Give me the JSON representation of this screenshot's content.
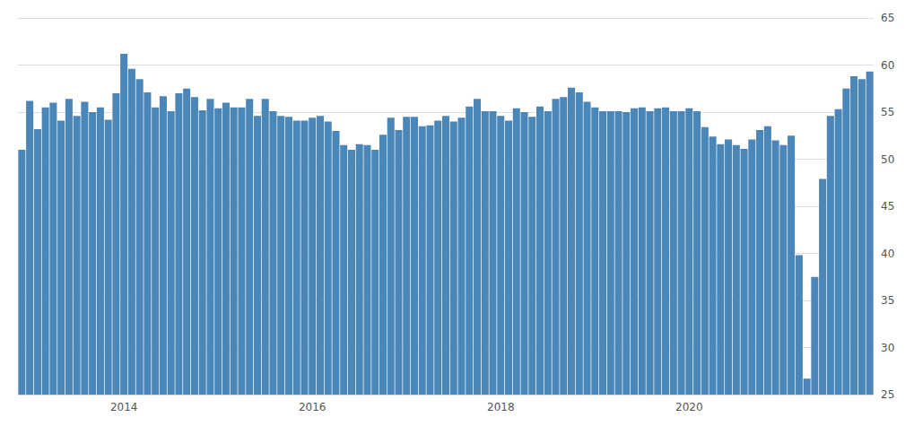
{
  "chart_data": {
    "type": "bar",
    "categories": [
      null,
      null,
      null,
      null,
      null,
      null,
      null,
      null,
      null,
      null,
      null,
      null,
      null,
      "2014",
      null,
      null,
      null,
      null,
      null,
      null,
      null,
      null,
      null,
      null,
      null,
      null,
      null,
      null,
      null,
      null,
      null,
      null,
      null,
      null,
      null,
      null,
      null,
      "2016",
      null,
      null,
      null,
      null,
      null,
      null,
      null,
      null,
      null,
      null,
      null,
      null,
      null,
      null,
      null,
      null,
      null,
      null,
      null,
      null,
      null,
      null,
      null,
      "2018",
      null,
      null,
      null,
      null,
      null,
      null,
      null,
      null,
      null,
      null,
      null,
      null,
      null,
      null,
      null,
      null,
      null,
      null,
      null,
      null,
      null,
      null,
      null,
      "2020",
      null,
      null,
      null,
      null,
      null,
      null,
      null,
      null,
      null,
      null,
      null,
      null,
      null,
      null,
      null,
      null,
      null,
      null,
      null,
      null,
      null,
      null,
      null
    ],
    "values": [
      51.0,
      56.2,
      53.2,
      55.5,
      56.0,
      54.1,
      56.4,
      54.6,
      56.1,
      55.0,
      55.5,
      54.2,
      57.0,
      61.2,
      59.6,
      58.5,
      57.1,
      55.5,
      56.7,
      55.1,
      57.0,
      57.5,
      56.6,
      55.2,
      56.4,
      55.4,
      56.0,
      55.5,
      55.5,
      56.4,
      54.6,
      56.4,
      55.1,
      54.6,
      54.5,
      54.1,
      54.1,
      54.4,
      54.6,
      54.0,
      53.0,
      51.5,
      51.0,
      51.6,
      51.5,
      51.0,
      52.6,
      54.4,
      53.1,
      54.5,
      54.5,
      53.5,
      53.6,
      54.1,
      54.6,
      54.0,
      54.4,
      55.6,
      56.4,
      55.1,
      55.1,
      54.6,
      54.1,
      55.4,
      55.0,
      54.5,
      55.6,
      55.1,
      56.4,
      56.6,
      57.6,
      57.1,
      56.1,
      55.5,
      55.1,
      55.1,
      55.1,
      55.0,
      55.4,
      55.5,
      55.1,
      55.4,
      55.5,
      55.1,
      55.1,
      55.4,
      55.1,
      53.4,
      52.4,
      51.6,
      52.1,
      51.5,
      51.1,
      52.1,
      53.1,
      53.5,
      52.0,
      51.5,
      52.5,
      39.8,
      26.7,
      37.5,
      47.9,
      54.6,
      55.3,
      57.5,
      58.8,
      58.5,
      59.3
    ],
    "color": "#4a86b8",
    "ylim": [
      25,
      65
    ],
    "yticks": [
      25,
      30,
      35,
      40,
      45,
      50,
      55,
      60,
      65
    ],
    "grid": true
  }
}
